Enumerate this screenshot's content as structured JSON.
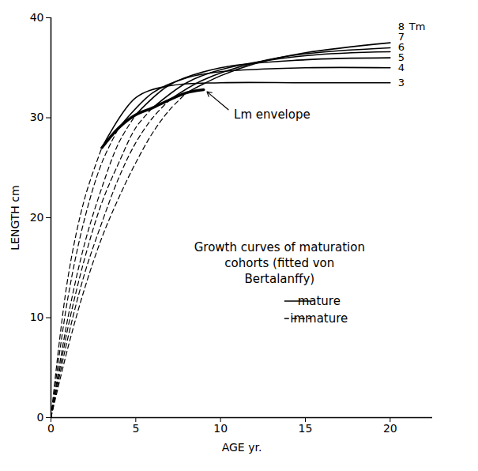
{
  "chart_data": {
    "type": "line",
    "x_label": "AGE yr.",
    "y_label": "LENGTH cm",
    "xlim": [
      0,
      22.5
    ],
    "xticks": [
      0,
      5,
      10,
      15,
      20
    ],
    "ylim": [
      0,
      40
    ],
    "yticks": [
      0,
      10,
      20,
      30,
      40
    ],
    "grid": false,
    "legend": "bottom-right",
    "legend_title": "Growth curves of maturation cohorts (fitted von Bertalanffy)",
    "series": [
      {
        "name": "mature",
        "line_style": "solid",
        "color": "#000000"
      },
      {
        "name": "immature",
        "line_style": "dashed",
        "color": "#000000"
      }
    ],
    "cohort_header": "Tm",
    "cohorts": [
      {
        "label": "3",
        "immature": {
          "x": [
            0,
            1,
            2,
            3
          ],
          "y": [
            0,
            14,
            22,
            27
          ]
        },
        "mature": {
          "x": [
            3,
            5,
            7,
            10,
            15,
            20
          ],
          "y": [
            27,
            32,
            33.2,
            33.5,
            33.5,
            33.5
          ]
        }
      },
      {
        "label": "4",
        "immature": {
          "x": [
            0,
            1,
            2,
            3,
            4
          ],
          "y": [
            0,
            12,
            20,
            25.5,
            29
          ]
        },
        "mature": {
          "x": [
            4,
            6,
            8,
            10,
            15,
            20
          ],
          "y": [
            29,
            32.5,
            34,
            34.6,
            35,
            35
          ]
        }
      },
      {
        "label": "5",
        "immature": {
          "x": [
            0,
            1,
            2,
            3,
            4,
            5
          ],
          "y": [
            0,
            10,
            17.5,
            23,
            27.5,
            30.3
          ]
        },
        "mature": {
          "x": [
            5,
            7,
            10,
            15,
            20
          ],
          "y": [
            30.3,
            33.3,
            35,
            35.8,
            36
          ]
        }
      },
      {
        "label": "6",
        "immature": {
          "x": [
            0,
            1,
            2,
            3,
            4,
            5,
            6
          ],
          "y": [
            0,
            9,
            16,
            21.5,
            25.5,
            29,
            31
          ]
        },
        "mature": {
          "x": [
            6,
            8,
            10,
            15,
            20
          ],
          "y": [
            31,
            33.5,
            34.8,
            36.2,
            36.6
          ]
        }
      },
      {
        "label": "7",
        "immature": {
          "x": [
            0,
            1,
            2,
            3,
            4,
            5,
            6,
            7
          ],
          "y": [
            0,
            8,
            14.5,
            19.5,
            24,
            27.5,
            30,
            31.8
          ]
        },
        "mature": {
          "x": [
            7,
            9,
            12,
            15,
            20
          ],
          "y": [
            31.8,
            33.8,
            35.5,
            36.4,
            37
          ]
        }
      },
      {
        "label": "8",
        "immature": {
          "x": [
            0,
            1,
            2,
            3,
            4,
            5,
            6,
            7,
            8
          ],
          "y": [
            0,
            7,
            13,
            18,
            22,
            25.5,
            28.5,
            30.8,
            32.5
          ]
        },
        "mature": {
          "x": [
            8,
            10,
            12,
            15,
            20
          ],
          "y": [
            32.5,
            34.2,
            35.4,
            36.5,
            37.5
          ]
        }
      }
    ],
    "envelope": {
      "label": "Lm envelope",
      "x": [
        3,
        4,
        5,
        6,
        7,
        8,
        9
      ],
      "y": [
        27,
        29,
        30.3,
        31,
        31.8,
        32.5,
        32.8
      ]
    }
  }
}
